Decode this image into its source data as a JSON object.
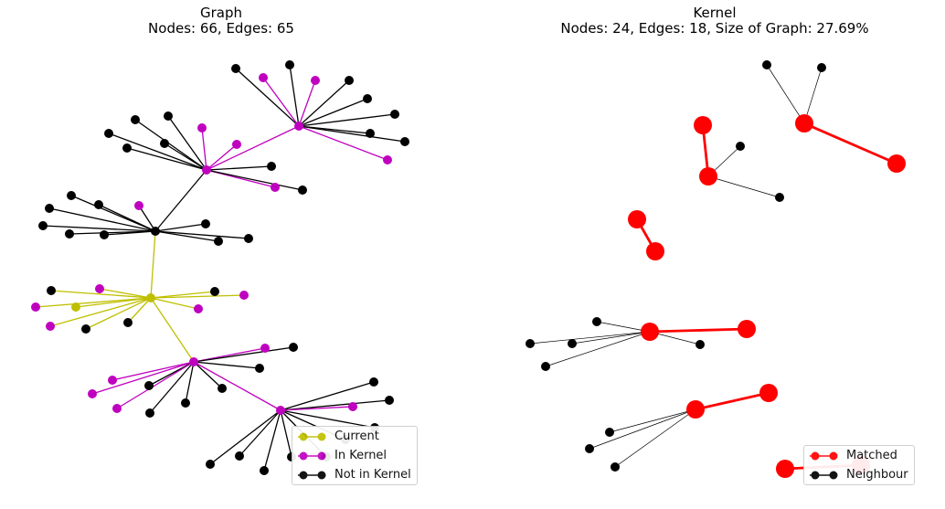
{
  "left_panel": {
    "title_line1": "Graph",
    "title_line2": "Nodes: 66, Edges: 65",
    "legend": [
      {
        "label": "Current",
        "color": "#bfbf00"
      },
      {
        "label": "In Kernel",
        "color": "#bf00bf"
      },
      {
        "label": "Not in Kernel",
        "color": "#000000"
      }
    ]
  },
  "right_panel": {
    "title_line1": "Kernel",
    "title_line2": "Nodes: 24, Edges: 18, Size of Graph: 27.69%",
    "legend": [
      {
        "label": "Matched",
        "color": "#ff0000"
      },
      {
        "label": "Neighbour",
        "color": "#000000"
      }
    ]
  },
  "colors": {
    "current": "#bfbf00",
    "in_kernel": "#bf00bf",
    "not_in_kernel": "#000000",
    "matched": "#ff0000",
    "neighbour": "#000000"
  }
}
